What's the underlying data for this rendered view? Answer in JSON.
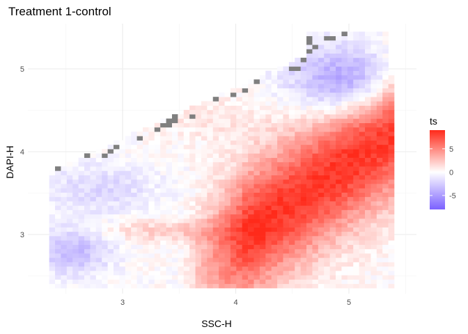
{
  "chart_data": {
    "type": "heatmap",
    "title": "Treatment 1-control",
    "xlabel": "SSC-H",
    "ylabel": "DAPI-H",
    "xlim": [
      2.3,
      5.4
    ],
    "ylim": [
      2.3,
      5.45
    ],
    "x_ticks": [
      3,
      4,
      5
    ],
    "x_tick_labels": [
      "3",
      "4",
      "5"
    ],
    "y_ticks": [
      3,
      4,
      5
    ],
    "y_tick_labels": [
      "3",
      "4",
      "5"
    ],
    "grid": true,
    "legend": {
      "title": "ts",
      "position": "right",
      "min": -8,
      "max": 9,
      "ticks": [
        -5,
        0,
        5
      ],
      "tick_labels": [
        "-5",
        "0",
        "5"
      ],
      "low_color": "#7b61ff",
      "mid_color": "#ffffff",
      "high_color": "#ff2a1a",
      "na_color": "#7f7f7f"
    },
    "grid_summary": {
      "x_range": [
        2.3,
        5.4
      ],
      "y_range": [
        2.3,
        5.45
      ],
      "columns": 60,
      "rows": 60,
      "description_values": [
        {
          "region": "diagonal band lower-right",
          "x": [
            3.9,
            5.3
          ],
          "y": [
            2.4,
            4.3
          ],
          "ts": 7
        },
        {
          "region": "upper-right",
          "x": [
            4.6,
            5.3
          ],
          "y": [
            4.5,
            5.1
          ],
          "ts": -5
        },
        {
          "region": "lower-left",
          "x": [
            2.3,
            2.9
          ],
          "y": [
            2.5,
            3.0
          ],
          "ts": -3
        },
        {
          "region": "left-middle",
          "x": [
            2.5,
            3.4
          ],
          "y": [
            3.3,
            3.8
          ],
          "ts": -2
        }
      ]
    }
  }
}
